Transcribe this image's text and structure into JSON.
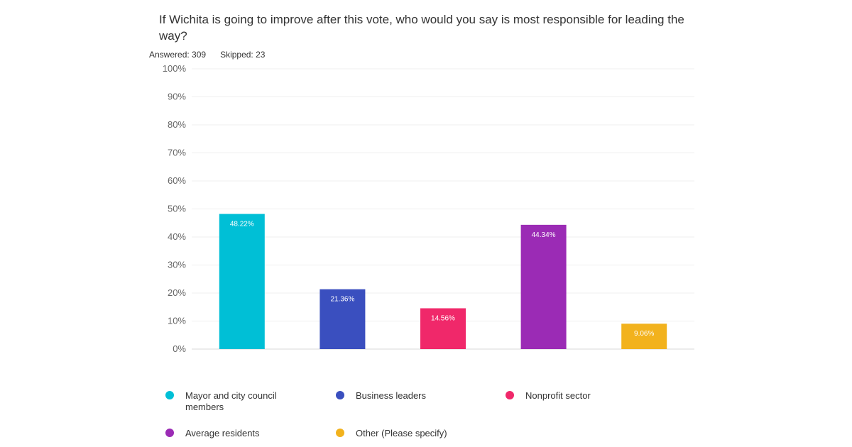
{
  "question": "If Wichita is going to improve after this vote, who would you say is most responsible for leading the way?",
  "answered": "Answered: 309",
  "skipped": "Skipped: 23",
  "chart_data": {
    "type": "bar",
    "categories": [
      "Mayor and city council members",
      "Business leaders",
      "Nonprofit sector",
      "Average residents",
      "Other (Please specify)"
    ],
    "values": [
      48.22,
      21.36,
      14.56,
      44.34,
      9.06
    ],
    "value_labels": [
      "48.22%",
      "21.36%",
      "14.56%",
      "44.34%",
      "9.06%"
    ],
    "colors": [
      "#00bfd6",
      "#3a4fbf",
      "#f0286a",
      "#9b2bb5",
      "#f2b21d"
    ],
    "ylim": [
      0,
      100
    ],
    "yticks": [
      "0%",
      "10%",
      "20%",
      "30%",
      "40%",
      "50%",
      "60%",
      "70%",
      "80%",
      "90%",
      "100%"
    ],
    "grid": true,
    "legend_position": "bottom"
  }
}
